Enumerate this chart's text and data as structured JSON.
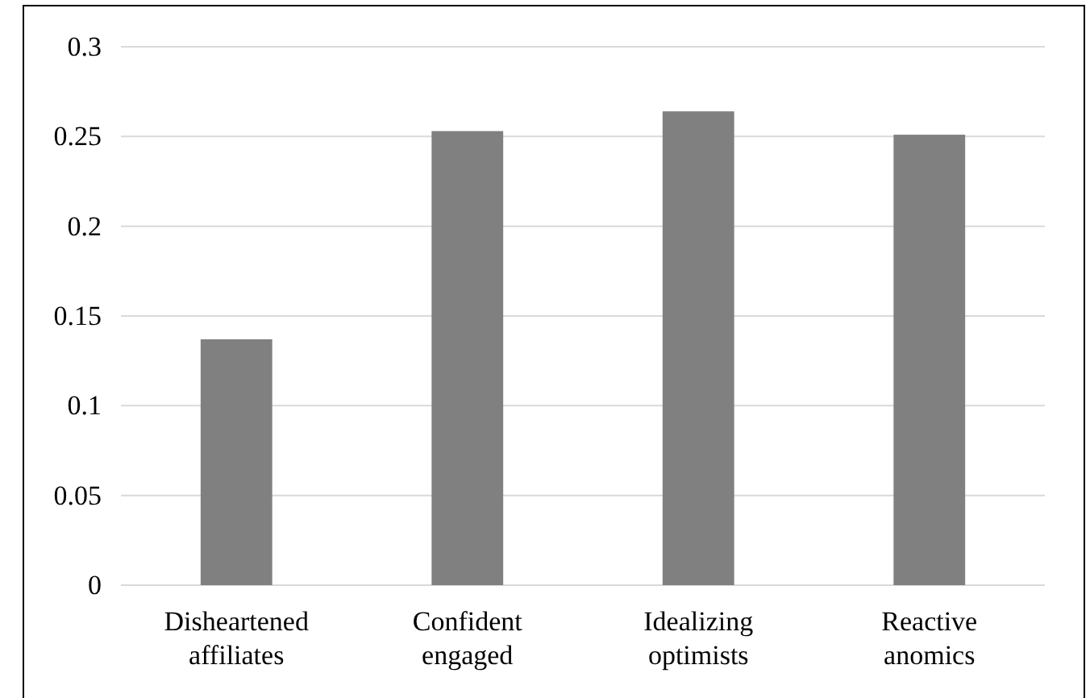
{
  "chart_data": {
    "type": "bar",
    "categories": [
      "Disheartened affiliates",
      "Confident engaged",
      "Idealizing optimists",
      "Reactive anomics"
    ],
    "values": [
      0.137,
      0.253,
      0.264,
      0.251
    ],
    "color": "#808080",
    "ylim": [
      0,
      0.3
    ],
    "yticks": [
      0,
      0.05,
      0.1,
      0.15,
      0.2,
      0.25,
      0.3
    ],
    "grid": "y"
  }
}
